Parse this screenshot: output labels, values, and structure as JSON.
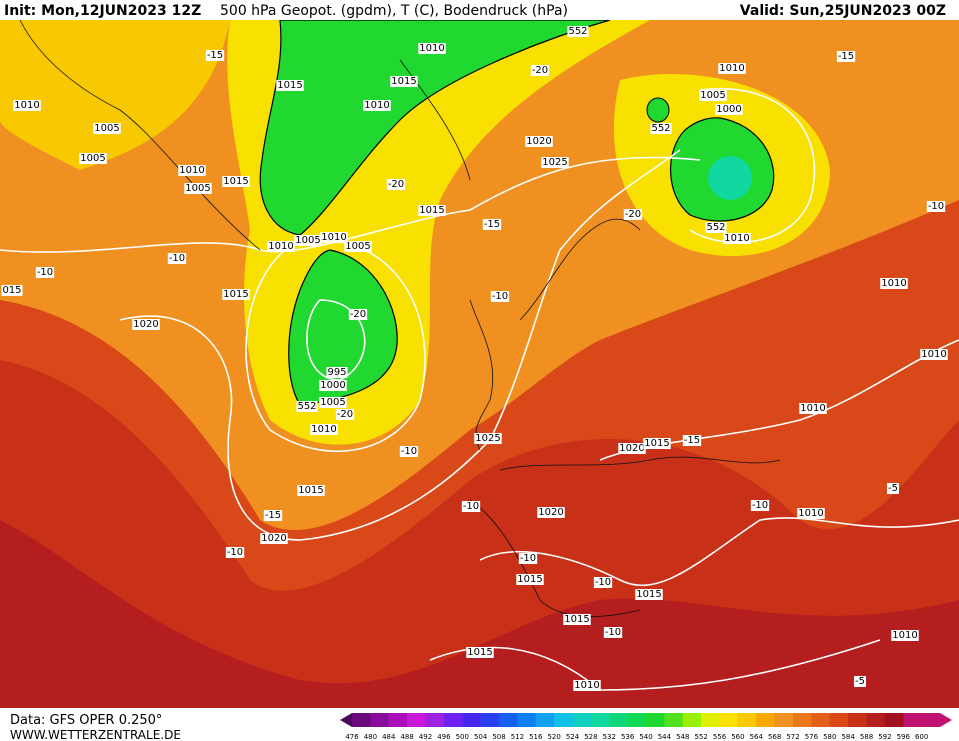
{
  "header": {
    "init": "Init: Mon,12JUN2023 12Z",
    "title": "500 hPa Geopot. (gpdm), T (C), Bodendruck (hPa)",
    "valid": "Valid: Sun,25JUN2023 00Z"
  },
  "footer": {
    "source": "Data: GFS OPER 0.250°",
    "site": "WWW.WETTERZENTRALE.DE"
  },
  "contour_labels": [
    "1010",
    "1015",
    "1010",
    "1015",
    "-15",
    "1010",
    "1005",
    "1005",
    "1010",
    "1015",
    "1005",
    "-20",
    "1015",
    "1010",
    "1005",
    "1005",
    "1010",
    "-10",
    "-10",
    "1015",
    "1020",
    "-20",
    "995",
    "1000",
    "1005",
    "-20",
    "1010",
    "1025",
    "-10",
    "1015",
    "-15",
    "1020",
    "-10",
    "-10",
    "1020",
    "-10",
    "1015",
    "-10",
    "1015",
    "1015",
    "-10",
    "1015",
    "1010",
    "-10",
    "-15",
    "-20",
    "1020",
    "1025",
    "552",
    "552",
    "1000",
    "1005",
    "1010",
    "-15",
    "-20",
    "552",
    "1010",
    "1010",
    "1010",
    "1010",
    "1020",
    "1015",
    "-15",
    "-10",
    "1010",
    "-5",
    "1010",
    "-5",
    "-10",
    "552",
    "015"
  ],
  "colorbar": {
    "labels": [
      476,
      480,
      484,
      488,
      492,
      496,
      500,
      504,
      508,
      512,
      516,
      520,
      524,
      528,
      532,
      536,
      540,
      544,
      548,
      552,
      556,
      560,
      564,
      568,
      572,
      576,
      580,
      584,
      588,
      592,
      596,
      600
    ],
    "colors": [
      "#4b0a5a",
      "#6a0a7a",
      "#8a0a9a",
      "#aa10ba",
      "#c818d8",
      "#a020e0",
      "#7020f0",
      "#4828f0",
      "#2840f0",
      "#1860f0",
      "#1080f0",
      "#10a0f0",
      "#10c0e8",
      "#10d0c0",
      "#10d8a0",
      "#10d878",
      "#10d850",
      "#20d830",
      "#50e020",
      "#98f000",
      "#e0f000",
      "#f8e000",
      "#f8c800",
      "#f8a800",
      "#f09020",
      "#e87818",
      "#e06018",
      "#d84818",
      "#c83018",
      "#b41e1e",
      "#a01020",
      "#c01070"
    ]
  }
}
